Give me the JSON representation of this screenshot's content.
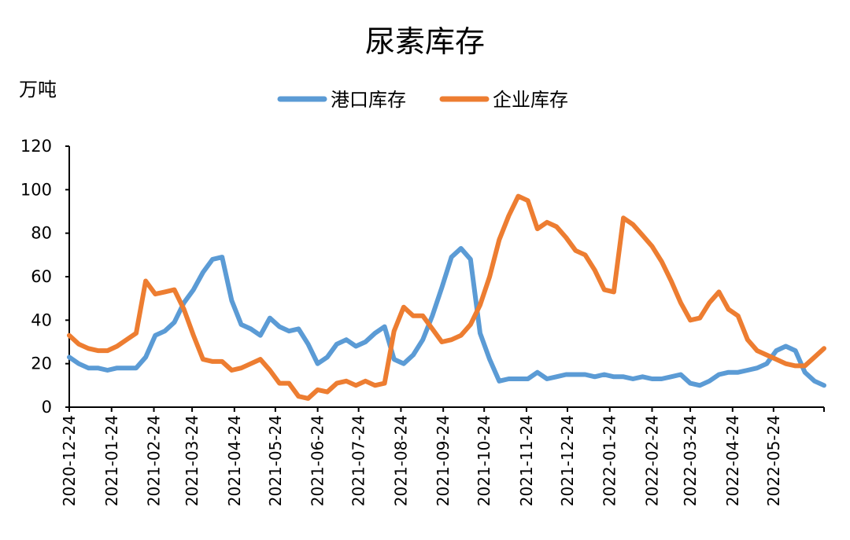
{
  "chart_data": {
    "type": "line",
    "title": "尿素库存",
    "ylabel": "万吨",
    "xlabel": "",
    "ylim": [
      0,
      120
    ],
    "yticks": [
      0,
      20,
      40,
      60,
      80,
      100,
      120
    ],
    "grid": false,
    "legend_placement": "top",
    "x_tick_labels": [
      "2020-12-24",
      "2021-01-24",
      "2021-02-24",
      "2021-03-24",
      "2021-04-24",
      "2021-05-24",
      "2021-06-24",
      "2021-07-24",
      "2021-08-24",
      "2021-09-24",
      "2021-10-24",
      "2021-11-24",
      "2021-12-24",
      "2022-01-24",
      "2022-02-24",
      "2022-03-24",
      "2022-04-24",
      "2022-05-24"
    ],
    "x": [
      "2020-12-24",
      "2020-12-31",
      "2021-01-07",
      "2021-01-14",
      "2021-01-21",
      "2021-01-28",
      "2021-02-04",
      "2021-02-11",
      "2021-02-18",
      "2021-02-25",
      "2021-03-04",
      "2021-03-11",
      "2021-03-18",
      "2021-03-25",
      "2021-04-01",
      "2021-04-08",
      "2021-04-15",
      "2021-04-22",
      "2021-04-29",
      "2021-05-06",
      "2021-05-13",
      "2021-05-20",
      "2021-05-27",
      "2021-06-03",
      "2021-06-10",
      "2021-06-17",
      "2021-06-24",
      "2021-07-01",
      "2021-07-08",
      "2021-07-15",
      "2021-07-22",
      "2021-07-29",
      "2021-08-05",
      "2021-08-12",
      "2021-08-19",
      "2021-08-26",
      "2021-09-02",
      "2021-09-09",
      "2021-09-16",
      "2021-09-23",
      "2021-09-30",
      "2021-10-07",
      "2021-10-14",
      "2021-10-21",
      "2021-10-28",
      "2021-11-04",
      "2021-11-11",
      "2021-11-18",
      "2021-11-25",
      "2021-12-02",
      "2021-12-09",
      "2021-12-16",
      "2021-12-23",
      "2021-12-30",
      "2022-01-06",
      "2022-01-13",
      "2022-01-20",
      "2022-01-27",
      "2022-02-03",
      "2022-02-10",
      "2022-02-17",
      "2022-02-24",
      "2022-03-03",
      "2022-03-10",
      "2022-03-17",
      "2022-03-24",
      "2022-03-31",
      "2022-04-07",
      "2022-04-14",
      "2022-04-21",
      "2022-04-28",
      "2022-05-05",
      "2022-05-12",
      "2022-05-19",
      "2022-05-26",
      "2022-06-02",
      "2022-06-09",
      "2022-06-16",
      "2022-06-23",
      "2022-06-30"
    ],
    "series": [
      {
        "name": "港口库存",
        "color": "#5b9bd5",
        "values": [
          23,
          20,
          18,
          18,
          17,
          18,
          18,
          18,
          23,
          33,
          35,
          39,
          48,
          54,
          62,
          68,
          69,
          49,
          38,
          36,
          33,
          41,
          37,
          35,
          36,
          29,
          20,
          23,
          29,
          31,
          28,
          30,
          34,
          37,
          22,
          20,
          24,
          31,
          42,
          55,
          69,
          73,
          68,
          34,
          22,
          12,
          13,
          13,
          13,
          16,
          13,
          14,
          15,
          15,
          15,
          14,
          15,
          14,
          14,
          13,
          14,
          13,
          13,
          14,
          15,
          11,
          10,
          12,
          15,
          16,
          16,
          17,
          18,
          20,
          26,
          28,
          26,
          16,
          12,
          10
        ]
      },
      {
        "name": "企业库存",
        "color": "#ed7d31",
        "values": [
          33,
          29,
          27,
          26,
          26,
          28,
          31,
          34,
          58,
          52,
          53,
          54,
          45,
          33,
          22,
          21,
          21,
          17,
          18,
          20,
          22,
          17,
          11,
          11,
          5,
          4,
          8,
          7,
          11,
          12,
          10,
          12,
          10,
          11,
          35,
          46,
          42,
          42,
          36,
          30,
          31,
          33,
          38,
          47,
          60,
          77,
          88,
          97,
          95,
          82,
          85,
          83,
          78,
          72,
          70,
          63,
          54,
          53,
          87,
          84,
          79,
          74,
          67,
          58,
          48,
          40,
          41,
          48,
          53,
          45,
          42,
          31,
          26,
          24,
          22,
          20,
          19,
          19,
          23,
          27
        ]
      }
    ]
  }
}
